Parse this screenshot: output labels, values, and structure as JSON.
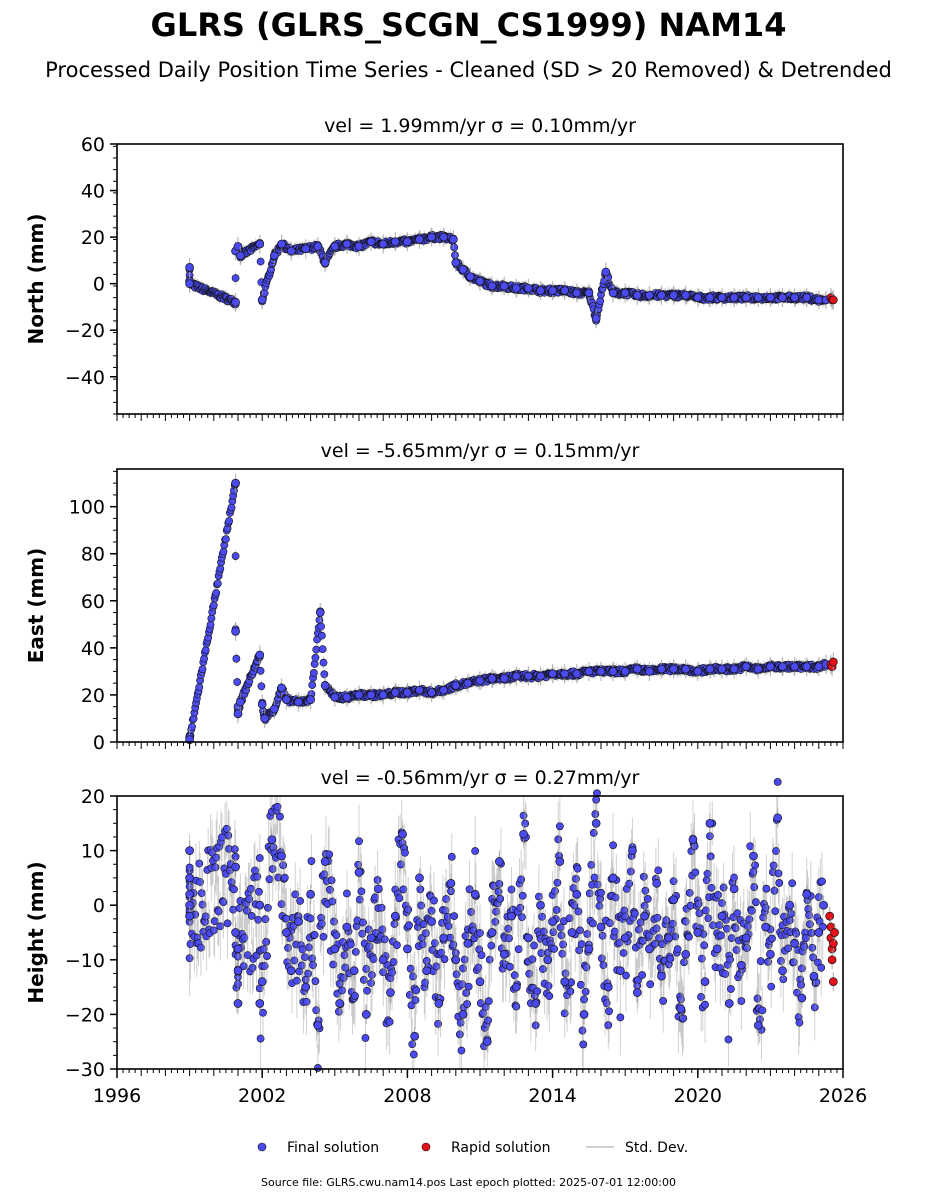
{
  "title": "GLRS (GLRS_SCGN_CS1999) NAM14",
  "subtitle": "Processed Daily Position Time Series - Cleaned (SD > 20 Removed) & Detrended",
  "footer": "Source file: GLRS.cwu.nam14.pos  Last epoch plotted: 2025-07-01 12:00:00",
  "colors": {
    "final": "#4a4af0",
    "rapid": "#e8101a",
    "std": "#9a9a9a"
  },
  "chart_data": [
    {
      "type": "scatter",
      "title": "vel = 1.99mm/yr   σ = 0.10mm/yr",
      "ylabel": "North (mm)",
      "xlim": [
        1996,
        2026
      ],
      "ylim": [
        -56,
        60
      ],
      "yticks": [
        -40,
        -20,
        0,
        20,
        40,
        60
      ],
      "ytick_labels": [
        "−40",
        "−20",
        "0",
        "20",
        "40",
        "60"
      ],
      "xticks": [],
      "series": [
        {
          "name": "Final solution",
          "x": [
            1999.0,
            1999.0,
            1999.0,
            2000.9,
            2000.9,
            2001.0,
            2001.1,
            2001.9,
            2002.0,
            2002.5,
            2002.8,
            2003.2,
            2003.8,
            2004.3,
            2004.6,
            2005.0,
            2005.5,
            2006.0,
            2006.5,
            2007.0,
            2007.5,
            2008.0,
            2008.5,
            2009.0,
            2009.5,
            2009.9,
            2010.0,
            2010.3,
            2010.6,
            2011.0,
            2011.5,
            2012.0,
            2012.5,
            2013.0,
            2013.5,
            2014.0,
            2014.5,
            2015.0,
            2015.5,
            2015.8,
            2016.2,
            2016.5,
            2017.0,
            2017.5,
            2018.0,
            2018.5,
            2019.0,
            2019.5,
            2020.0,
            2020.5,
            2021.0,
            2021.5,
            2022.0,
            2022.5,
            2023.0,
            2023.5,
            2024.0,
            2024.5,
            2025.0,
            2025.3
          ],
          "y": [
            7,
            1,
            0,
            -8,
            14,
            16,
            12,
            17,
            -7,
            12,
            17,
            14,
            15,
            16,
            9,
            16,
            17,
            16,
            18,
            17,
            18,
            18,
            19,
            20,
            20,
            19,
            9,
            6,
            3,
            1,
            -1,
            -1,
            -2,
            -2,
            -3,
            -3,
            -3,
            -4,
            -4,
            -15,
            5,
            -4,
            -4,
            -5,
            -5,
            -5,
            -5,
            -5,
            -6,
            -6,
            -6,
            -6,
            -6,
            -6,
            -6,
            -6,
            -6,
            -6,
            -7,
            -7
          ]
        },
        {
          "name": "Rapid solution",
          "x": [
            2025.5,
            2025.55,
            2025.6
          ],
          "y": [
            -6,
            -7,
            -7
          ]
        }
      ]
    },
    {
      "type": "scatter",
      "title": "vel = -5.65mm/yr   σ = 0.15mm/yr",
      "ylabel": "East (mm)",
      "xlim": [
        1996,
        2026
      ],
      "ylim": [
        0,
        116
      ],
      "yticks": [
        0,
        20,
        40,
        60,
        80,
        100
      ],
      "ytick_labels": [
        "0",
        "20",
        "40",
        "60",
        "80",
        "100"
      ],
      "xticks": [],
      "series": [
        {
          "name": "Final solution",
          "x": [
            1999.0,
            1999.0,
            2000.9,
            2000.9,
            2001.0,
            2001.0,
            2001.1,
            2001.9,
            2002.0,
            2002.1,
            2002.5,
            2002.8,
            2003.0,
            2003.5,
            2004.0,
            2004.4,
            2004.6,
            2005.0,
            2005.5,
            2006.0,
            2006.5,
            2007.0,
            2007.5,
            2008.0,
            2008.5,
            2009.0,
            2009.5,
            2010.0,
            2010.5,
            2011.0,
            2011.5,
            2012.0,
            2012.5,
            2013.0,
            2013.5,
            2014.0,
            2014.5,
            2015.0,
            2015.5,
            2016.0,
            2016.5,
            2017.0,
            2017.5,
            2018.0,
            2018.5,
            2019.0,
            2019.5,
            2020.0,
            2020.5,
            2021.0,
            2021.5,
            2022.0,
            2022.5,
            2023.0,
            2023.5,
            2024.0,
            2024.5,
            2025.0,
            2025.3
          ],
          "y": [
            2,
            1,
            110,
            47,
            15,
            12,
            17,
            37,
            16,
            10,
            14,
            23,
            18,
            17,
            18,
            55,
            24,
            19,
            19,
            20,
            20,
            20,
            21,
            21,
            22,
            21,
            22,
            24,
            25,
            26,
            27,
            27,
            28,
            28,
            28,
            29,
            29,
            29,
            30,
            30,
            30,
            30,
            31,
            30,
            31,
            31,
            31,
            30,
            31,
            31,
            31,
            32,
            31,
            32,
            32,
            32,
            32,
            32,
            33
          ]
        },
        {
          "name": "Rapid solution",
          "x": [
            2025.5,
            2025.55,
            2025.6
          ],
          "y": [
            33,
            32,
            34
          ]
        }
      ]
    },
    {
      "type": "scatter",
      "title": "vel = -0.56mm/yr   σ = 0.27mm/yr",
      "ylabel": "Height (mm)",
      "xlim": [
        1996,
        2026
      ],
      "ylim": [
        -30,
        20
      ],
      "yticks": [
        -30,
        -20,
        -10,
        0,
        10,
        20
      ],
      "ytick_labels": [
        "−30",
        "−20",
        "−10",
        "0",
        "10",
        "20"
      ],
      "xticks": [
        1996,
        2002,
        2008,
        2014,
        2020,
        2026
      ],
      "xtick_labels": [
        "1996",
        "2002",
        "2008",
        "2014",
        "2020",
        "2026"
      ],
      "series": [
        {
          "name": "Final solution",
          "x": [
            1999.0,
            1999.0,
            1999.0,
            1999.0,
            1999.0,
            2000.9,
            2000.9,
            2001.0,
            2001.0,
            2001.0,
            2001.9,
            2001.9,
            2002.0,
            2002.4,
            2002.8,
            2003.0,
            2003.2,
            2003.5,
            2003.8,
            2004.0,
            2004.3,
            2004.6,
            2005.0,
            2005.2,
            2005.5,
            2005.8,
            2006.0,
            2006.3,
            2006.5,
            2006.8,
            2007.0,
            2007.3,
            2007.5,
            2007.8,
            2008.0,
            2008.3,
            2008.5,
            2008.8,
            2009.0,
            2009.3,
            2009.5,
            2009.8,
            2010.0,
            2010.3,
            2010.5,
            2010.8,
            2011.0,
            2011.3,
            2011.5,
            2011.8,
            2012.0,
            2012.3,
            2012.5,
            2012.8,
            2013.0,
            2013.3,
            2013.5,
            2013.8,
            2014.0,
            2014.3,
            2014.5,
            2014.8,
            2015.0,
            2015.3,
            2015.5,
            2015.8,
            2016.0,
            2016.3,
            2016.5,
            2016.8,
            2017.0,
            2017.3,
            2017.5,
            2017.8,
            2018.0,
            2018.3,
            2018.5,
            2018.8,
            2019.0,
            2019.3,
            2019.5,
            2019.8,
            2020.0,
            2020.3,
            2020.5,
            2020.8,
            2021.0,
            2021.3,
            2021.5,
            2021.8,
            2022.0,
            2022.3,
            2022.5,
            2022.8,
            2023.0,
            2023.3,
            2023.5,
            2023.8,
            2024.0,
            2024.3,
            2024.5,
            2024.8,
            2025.0,
            2025.2
          ],
          "y": [
            10,
            5,
            2,
            0,
            -2,
            7,
            -5,
            -12,
            -18,
            -8,
            0,
            -18,
            -14,
            12,
            9,
            -5,
            -12,
            -3,
            -15,
            2,
            -22,
            8,
            -8,
            -18,
            -4,
            -12,
            6,
            -20,
            -6,
            3,
            -10,
            -16,
            -2,
            13,
            -8,
            -24,
            5,
            -12,
            -3,
            -18,
            -6,
            4,
            -10,
            -20,
            -7,
            2,
            -14,
            -25,
            -5,
            8,
            -9,
            -2,
            -15,
            13,
            -6,
            -18,
            0,
            -10,
            -3,
            8,
            -14,
            -5,
            2,
            -20,
            -8,
            15,
            -4,
            -15,
            5,
            -12,
            -6,
            10,
            -16,
            -2,
            -8,
            4,
            -13,
            -6,
            1,
            -19,
            -9,
            12,
            -5,
            -14,
            15,
            -8,
            -2,
            -18,
            3,
            -11,
            -6,
            9,
            -22,
            -4,
            -9,
            16,
            -12,
            0,
            -7,
            -17,
            2,
            -13,
            -5,
            0
          ]
        },
        {
          "name": "Rapid solution",
          "x": [
            2025.45,
            2025.5,
            2025.5,
            2025.55,
            2025.55,
            2025.6,
            2025.6,
            2025.65
          ],
          "y": [
            -2,
            -4,
            -6,
            -8,
            -10,
            -7,
            -14,
            -5
          ]
        }
      ]
    }
  ],
  "legend": {
    "placement": "bottom-center",
    "items": [
      {
        "label": "Final solution"
      },
      {
        "label": "Rapid solution"
      },
      {
        "label": "Std. Dev."
      }
    ]
  }
}
